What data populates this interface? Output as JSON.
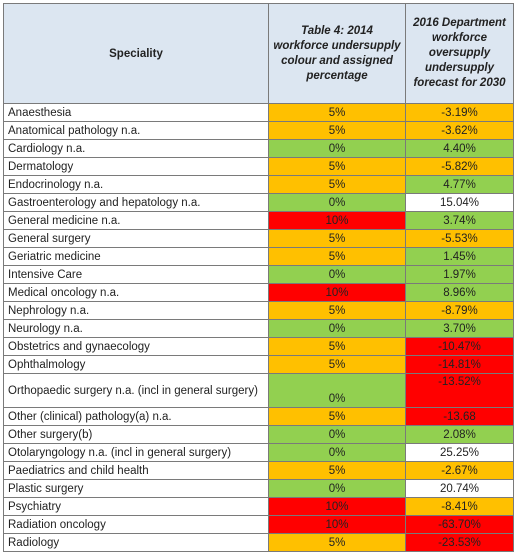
{
  "header": {
    "speciality": "Speciality",
    "col2": "Table 4:  2014 workforce undersupply colour and assigned percentage",
    "col3": "2016 Department workforce oversupply undersupply forecast for 2030"
  },
  "colors": {
    "header_bg": "#dce6f1",
    "orange": "#ffc000",
    "green": "#92d050",
    "red": "#ff0000",
    "white": "#ffffff"
  },
  "rows": [
    {
      "name": "Anaesthesia",
      "pct2014": "5%",
      "c1": "orange",
      "f2030": "-3.19%",
      "c2": "orange"
    },
    {
      "name": "Anatomical pathology n.a.",
      "pct2014": "5%",
      "c1": "orange",
      "f2030": "-3.62%",
      "c2": "orange"
    },
    {
      "name": "Cardiology n.a.",
      "pct2014": "0%",
      "c1": "green",
      "f2030": "4.40%",
      "c2": "green"
    },
    {
      "name": "Dermatology",
      "pct2014": "5%",
      "c1": "orange",
      "f2030": "-5.82%",
      "c2": "orange"
    },
    {
      "name": "Endocrinology n.a.",
      "pct2014": "5%",
      "c1": "orange",
      "f2030": "4.77%",
      "c2": "green"
    },
    {
      "name": "Gastroenterology and hepatology n.a.",
      "pct2014": "0%",
      "c1": "green",
      "f2030": "15.04%",
      "c2": "white"
    },
    {
      "name": "General medicine n.a.",
      "pct2014": "10%",
      "c1": "red",
      "f2030": "3.74%",
      "c2": "green"
    },
    {
      "name": "General surgery",
      "pct2014": "5%",
      "c1": "orange",
      "f2030": "-5.53%",
      "c2": "orange"
    },
    {
      "name": "Geriatric medicine",
      "pct2014": "5%",
      "c1": "orange",
      "f2030": "1.45%",
      "c2": "green"
    },
    {
      "name": "Intensive Care",
      "pct2014": "0%",
      "c1": "green",
      "f2030": "1.97%",
      "c2": "green"
    },
    {
      "name": "Medical oncology n.a.",
      "pct2014": "10%",
      "c1": "red",
      "f2030": "8.96%",
      "c2": "green"
    },
    {
      "name": "Nephrology n.a.",
      "pct2014": "5%",
      "c1": "orange",
      "f2030": "-8.79%",
      "c2": "orange"
    },
    {
      "name": "Neurology n.a.",
      "pct2014": "0%",
      "c1": "green",
      "f2030": "3.70%",
      "c2": "green"
    },
    {
      "name": "Obstetrics and gynaecology",
      "pct2014": "5%",
      "c1": "orange",
      "f2030": "-10.47%",
      "c2": "red"
    },
    {
      "name": "Ophthalmology",
      "pct2014": "5%",
      "c1": "orange",
      "f2030": "-14.81%",
      "c2": "red"
    },
    {
      "name": "Orthopaedic surgery n.a. (incl in general surgery)",
      "pct2014": "0%",
      "c1": "green",
      "f2030": "-13.52%",
      "c2": "red",
      "tall": true
    },
    {
      "name": "Other (clinical) pathology(a) n.a.",
      "pct2014": "5%",
      "c1": "orange",
      "f2030": "-13.68",
      "c2": "red"
    },
    {
      "name": "Other surgery(b)",
      "pct2014": "0%",
      "c1": "green",
      "f2030": "2.08%",
      "c2": "green"
    },
    {
      "name": "Otolaryngology n.a. (incl in general surgery)",
      "pct2014": "0%",
      "c1": "green",
      "f2030": "25.25%",
      "c2": "white"
    },
    {
      "name": "Paediatrics and child health",
      "pct2014": "5%",
      "c1": "orange",
      "f2030": "-2.67%",
      "c2": "orange"
    },
    {
      "name": "Plastic surgery",
      "pct2014": "0%",
      "c1": "green",
      "f2030": "20.74%",
      "c2": "white"
    },
    {
      "name": "Psychiatry",
      "pct2014": "10%",
      "c1": "red",
      "f2030": "-8.41%",
      "c2": "orange"
    },
    {
      "name": "Radiation oncology",
      "pct2014": "10%",
      "c1": "red",
      "f2030": "-63.70%",
      "c2": "red"
    },
    {
      "name": "Radiology",
      "pct2014": "5%",
      "c1": "orange",
      "f2030": "-23.53%",
      "c2": "red"
    }
  ]
}
